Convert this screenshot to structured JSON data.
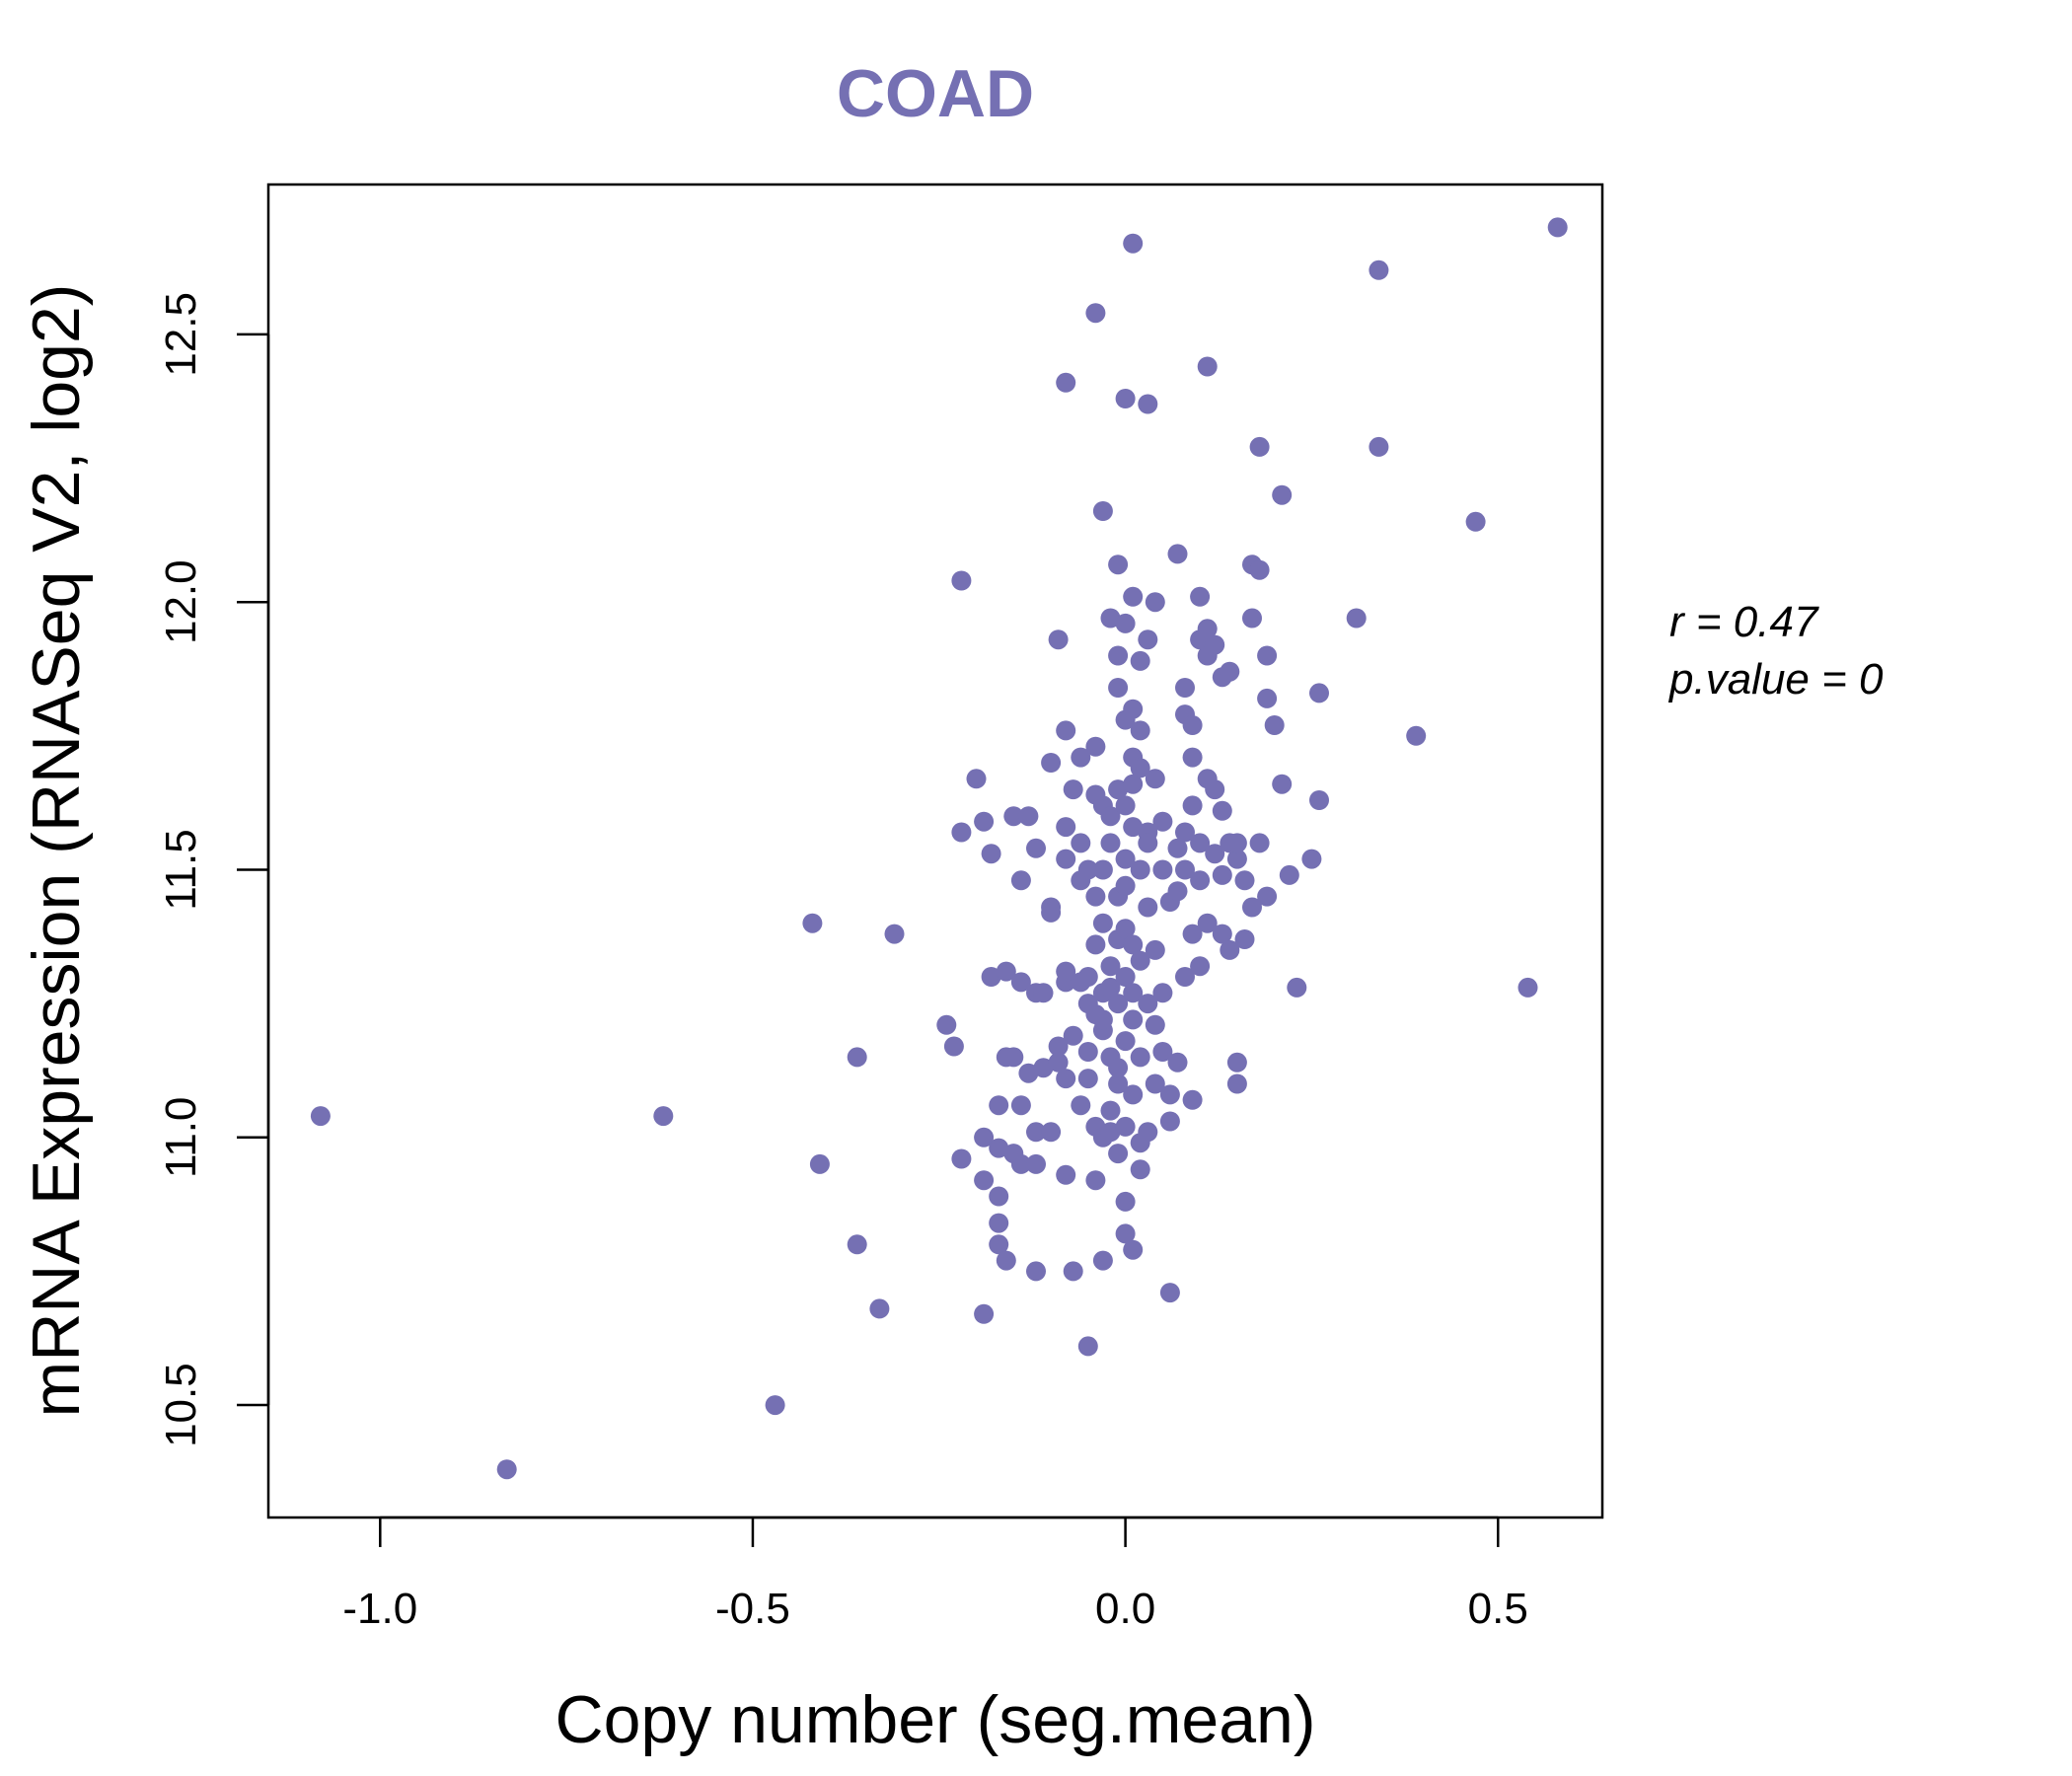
{
  "chart_data": {
    "type": "scatter",
    "title": "COAD",
    "xlabel": "Copy number (seg.mean)",
    "ylabel": "mRNA Expression (RNASeq V2, log2)",
    "xlim": [
      -1.15,
      0.64
    ],
    "ylim": [
      10.29,
      12.78
    ],
    "x_ticks": [
      -1.0,
      -0.5,
      0.0,
      0.5
    ],
    "x_tick_labels": [
      "-1.0",
      "-0.5",
      "0.0",
      "0.5"
    ],
    "y_ticks": [
      10.5,
      11.0,
      11.5,
      12.0,
      12.5
    ],
    "y_tick_labels": [
      "10.5",
      "11.0",
      "11.5",
      "12.0",
      "12.5"
    ],
    "grid": false,
    "point_color": "#7570b3",
    "annotations": {
      "r_label": "r = 0.47",
      "p_label": "p.value = 0"
    },
    "points": [
      [
        -1.08,
        11.04
      ],
      [
        -0.83,
        10.38
      ],
      [
        -0.62,
        11.04
      ],
      [
        -0.47,
        10.5
      ],
      [
        -0.42,
        11.4
      ],
      [
        -0.41,
        10.95
      ],
      [
        -0.36,
        10.8
      ],
      [
        -0.36,
        11.15
      ],
      [
        -0.33,
        10.68
      ],
      [
        -0.31,
        11.38
      ],
      [
        -0.24,
        11.21
      ],
      [
        -0.23,
        11.17
      ],
      [
        -0.22,
        10.96
      ],
      [
        -0.22,
        11.57
      ],
      [
        -0.22,
        12.04
      ],
      [
        -0.2,
        11.67
      ],
      [
        -0.19,
        10.92
      ],
      [
        -0.19,
        11.0
      ],
      [
        -0.19,
        11.59
      ],
      [
        -0.19,
        10.67
      ],
      [
        -0.18,
        11.53
      ],
      [
        -0.18,
        11.3
      ],
      [
        -0.17,
        10.98
      ],
      [
        -0.17,
        11.06
      ],
      [
        -0.17,
        10.84
      ],
      [
        -0.17,
        10.8
      ],
      [
        -0.17,
        10.89
      ],
      [
        -0.16,
        11.15
      ],
      [
        -0.16,
        11.31
      ],
      [
        -0.16,
        10.77
      ],
      [
        -0.15,
        11.15
      ],
      [
        -0.15,
        10.97
      ],
      [
        -0.15,
        11.6
      ],
      [
        -0.14,
        10.95
      ],
      [
        -0.14,
        11.29
      ],
      [
        -0.14,
        11.48
      ],
      [
        -0.14,
        11.06
      ],
      [
        -0.13,
        11.6
      ],
      [
        -0.13,
        11.12
      ],
      [
        -0.12,
        10.75
      ],
      [
        -0.12,
        11.27
      ],
      [
        -0.12,
        11.54
      ],
      [
        -0.12,
        11.01
      ],
      [
        -0.12,
        10.95
      ],
      [
        -0.11,
        11.13
      ],
      [
        -0.11,
        11.27
      ],
      [
        -0.1,
        11.01
      ],
      [
        -0.1,
        11.43
      ],
      [
        -0.1,
        11.42
      ],
      [
        -0.1,
        11.7
      ],
      [
        -0.09,
        11.14
      ],
      [
        -0.09,
        11.17
      ],
      [
        -0.09,
        11.93
      ],
      [
        -0.08,
        10.93
      ],
      [
        -0.08,
        11.11
      ],
      [
        -0.08,
        11.29
      ],
      [
        -0.08,
        11.31
      ],
      [
        -0.08,
        11.52
      ],
      [
        -0.08,
        11.58
      ],
      [
        -0.08,
        11.76
      ],
      [
        -0.08,
        12.41
      ],
      [
        -0.07,
        10.75
      ],
      [
        -0.07,
        11.19
      ],
      [
        -0.07,
        11.65
      ],
      [
        -0.06,
        11.29
      ],
      [
        -0.06,
        11.48
      ],
      [
        -0.06,
        11.55
      ],
      [
        -0.06,
        11.71
      ],
      [
        -0.06,
        11.06
      ],
      [
        -0.05,
        11.16
      ],
      [
        -0.05,
        11.25
      ],
      [
        -0.05,
        10.61
      ],
      [
        -0.05,
        11.11
      ],
      [
        -0.05,
        11.3
      ],
      [
        -0.05,
        11.5
      ],
      [
        -0.04,
        11.02
      ],
      [
        -0.04,
        11.23
      ],
      [
        -0.04,
        11.45
      ],
      [
        -0.04,
        11.73
      ],
      [
        -0.04,
        12.54
      ],
      [
        -0.04,
        10.92
      ],
      [
        -0.04,
        11.36
      ],
      [
        -0.04,
        11.64
      ],
      [
        -0.03,
        10.77
      ],
      [
        -0.03,
        11.0
      ],
      [
        -0.03,
        11.2
      ],
      [
        -0.03,
        11.4
      ],
      [
        -0.03,
        11.62
      ],
      [
        -0.03,
        12.17
      ],
      [
        -0.03,
        11.27
      ],
      [
        -0.03,
        11.22
      ],
      [
        -0.03,
        11.5
      ],
      [
        -0.02,
        11.05
      ],
      [
        -0.02,
        11.32
      ],
      [
        -0.02,
        11.55
      ],
      [
        -0.02,
        11.15
      ],
      [
        -0.02,
        11.6
      ],
      [
        -0.02,
        11.97
      ],
      [
        -0.02,
        11.01
      ],
      [
        -0.02,
        11.28
      ],
      [
        -0.01,
        10.97
      ],
      [
        -0.01,
        11.1
      ],
      [
        -0.01,
        11.25
      ],
      [
        -0.01,
        11.45
      ],
      [
        -0.01,
        11.65
      ],
      [
        -0.01,
        11.84
      ],
      [
        -0.01,
        11.9
      ],
      [
        -0.01,
        12.07
      ],
      [
        -0.01,
        11.37
      ],
      [
        -0.01,
        11.13
      ],
      [
        0.0,
        10.82
      ],
      [
        0.0,
        11.02
      ],
      [
        0.0,
        11.18
      ],
      [
        0.0,
        11.3
      ],
      [
        0.0,
        11.47
      ],
      [
        0.0,
        11.62
      ],
      [
        0.0,
        11.78
      ],
      [
        0.0,
        11.96
      ],
      [
        0.0,
        12.38
      ],
      [
        0.0,
        10.88
      ],
      [
        0.0,
        11.39
      ],
      [
        0.0,
        11.52
      ],
      [
        0.01,
        10.79
      ],
      [
        0.01,
        11.08
      ],
      [
        0.01,
        11.22
      ],
      [
        0.01,
        11.36
      ],
      [
        0.01,
        11.58
      ],
      [
        0.01,
        11.71
      ],
      [
        0.01,
        11.8
      ],
      [
        0.01,
        12.01
      ],
      [
        0.01,
        12.67
      ],
      [
        0.01,
        11.66
      ],
      [
        0.01,
        11.27
      ],
      [
        0.02,
        10.99
      ],
      [
        0.02,
        11.15
      ],
      [
        0.02,
        11.33
      ],
      [
        0.02,
        11.5
      ],
      [
        0.02,
        11.69
      ],
      [
        0.02,
        11.89
      ],
      [
        0.02,
        10.94
      ],
      [
        0.02,
        11.76
      ],
      [
        0.03,
        11.01
      ],
      [
        0.03,
        11.25
      ],
      [
        0.03,
        11.43
      ],
      [
        0.03,
        11.57
      ],
      [
        0.03,
        11.93
      ],
      [
        0.03,
        12.37
      ],
      [
        0.03,
        11.55
      ],
      [
        0.04,
        11.21
      ],
      [
        0.04,
        11.35
      ],
      [
        0.04,
        11.67
      ],
      [
        0.04,
        12.0
      ],
      [
        0.04,
        11.1
      ],
      [
        0.05,
        11.27
      ],
      [
        0.05,
        11.59
      ],
      [
        0.05,
        11.16
      ],
      [
        0.05,
        11.5
      ],
      [
        0.06,
        10.71
      ],
      [
        0.06,
        11.08
      ],
      [
        0.06,
        11.03
      ],
      [
        0.06,
        11.44
      ],
      [
        0.07,
        11.14
      ],
      [
        0.07,
        11.54
      ],
      [
        0.07,
        12.09
      ],
      [
        0.07,
        11.46
      ],
      [
        0.08,
        11.3
      ],
      [
        0.08,
        11.57
      ],
      [
        0.08,
        11.84
      ],
      [
        0.08,
        11.79
      ],
      [
        0.08,
        11.5
      ],
      [
        0.09,
        11.07
      ],
      [
        0.09,
        11.38
      ],
      [
        0.09,
        11.62
      ],
      [
        0.09,
        11.71
      ],
      [
        0.09,
        11.77
      ],
      [
        0.1,
        11.32
      ],
      [
        0.1,
        11.48
      ],
      [
        0.1,
        11.93
      ],
      [
        0.1,
        12.01
      ],
      [
        0.1,
        11.55
      ],
      [
        0.11,
        11.4
      ],
      [
        0.11,
        11.67
      ],
      [
        0.11,
        11.9
      ],
      [
        0.11,
        12.44
      ],
      [
        0.11,
        11.95
      ],
      [
        0.12,
        11.65
      ],
      [
        0.12,
        11.92
      ],
      [
        0.12,
        11.53
      ],
      [
        0.13,
        11.38
      ],
      [
        0.13,
        11.49
      ],
      [
        0.13,
        11.61
      ],
      [
        0.13,
        11.86
      ],
      [
        0.14,
        11.35
      ],
      [
        0.14,
        11.55
      ],
      [
        0.14,
        11.87
      ],
      [
        0.15,
        11.14
      ],
      [
        0.15,
        11.1
      ],
      [
        0.15,
        11.52
      ],
      [
        0.15,
        11.55
      ],
      [
        0.16,
        11.48
      ],
      [
        0.16,
        11.37
      ],
      [
        0.17,
        11.97
      ],
      [
        0.17,
        12.07
      ],
      [
        0.17,
        11.43
      ],
      [
        0.18,
        12.06
      ],
      [
        0.18,
        11.55
      ],
      [
        0.18,
        12.29
      ],
      [
        0.19,
        11.45
      ],
      [
        0.19,
        11.82
      ],
      [
        0.19,
        11.9
      ],
      [
        0.2,
        11.77
      ],
      [
        0.21,
        12.2
      ],
      [
        0.21,
        11.66
      ],
      [
        0.22,
        11.49
      ],
      [
        0.23,
        11.28
      ],
      [
        0.25,
        11.52
      ],
      [
        0.26,
        11.83
      ],
      [
        0.26,
        11.63
      ],
      [
        0.31,
        11.97
      ],
      [
        0.34,
        12.29
      ],
      [
        0.34,
        12.62
      ],
      [
        0.39,
        11.75
      ],
      [
        0.47,
        12.15
      ],
      [
        0.54,
        11.28
      ],
      [
        0.58,
        12.7
      ]
    ]
  }
}
